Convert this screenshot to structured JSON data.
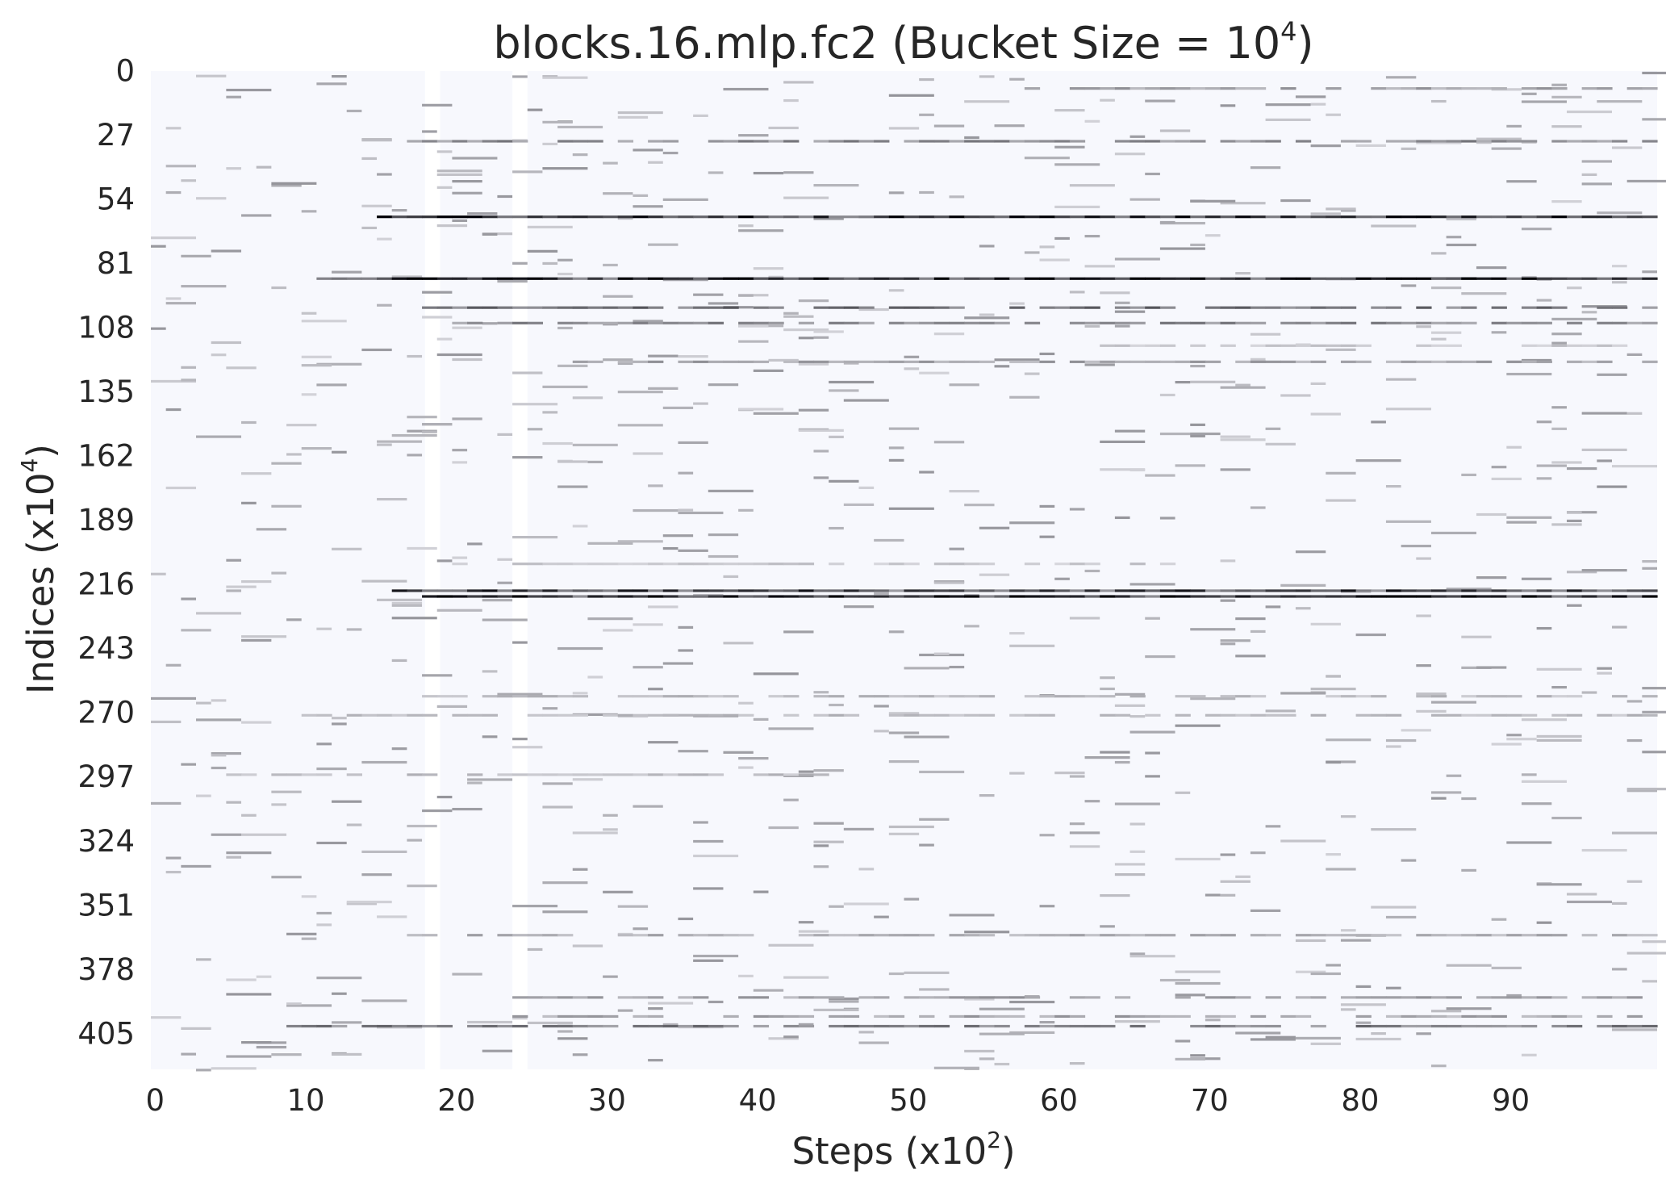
{
  "chart_data": {
    "type": "heatmap",
    "title": "blocks.16.mlp.fc2 (Bucket Size = 10",
    "title_sup": "4",
    "title_end": ")",
    "xlabel": "Steps (x10",
    "xlabel_sup": "2",
    "xlabel_end": ")",
    "ylabel": "Indices (x10",
    "ylabel_sup": "4",
    "ylabel_end": ")",
    "x_ticks": [
      0,
      10,
      20,
      30,
      40,
      50,
      60,
      70,
      80,
      90
    ],
    "y_ticks": [
      0,
      27,
      54,
      81,
      108,
      135,
      162,
      189,
      216,
      243,
      270,
      297,
      324,
      351,
      378,
      405
    ],
    "xlim": [
      0,
      100
    ],
    "ylim": [
      0,
      420
    ],
    "colormap": {
      "low": "#f7f8fd",
      "high": "#000000"
    },
    "background": "#f7f8fd",
    "streaks": [
      {
        "y": 60.8,
        "x0": 15,
        "x1": 100,
        "intensity": 0.95
      },
      {
        "y": 86.8,
        "x0": 11,
        "x1": 100,
        "intensity": 0.95
      },
      {
        "y": 218.1,
        "x0": 16,
        "x1": 100,
        "intensity": 0.8
      },
      {
        "y": 220.5,
        "x0": 18,
        "x1": 100,
        "intensity": 0.95
      },
      {
        "y": 99.0,
        "x0": 18,
        "x1": 100,
        "intensity": 0.55
      },
      {
        "y": 105.5,
        "x0": 20,
        "x1": 100,
        "intensity": 0.45
      },
      {
        "y": 29.0,
        "x0": 17,
        "x1": 100,
        "intensity": 0.45
      },
      {
        "y": 401.3,
        "x0": 9,
        "x1": 100,
        "intensity": 0.5
      },
      {
        "y": 397.2,
        "x0": 24,
        "x1": 100,
        "intensity": 0.35
      },
      {
        "y": 389.2,
        "x0": 23,
        "x1": 100,
        "intensity": 0.35
      },
      {
        "y": 363.0,
        "x0": 17,
        "x1": 100,
        "intensity": 0.3
      },
      {
        "y": 121.8,
        "x0": 28,
        "x1": 100,
        "intensity": 0.35
      },
      {
        "y": 6.8,
        "x0": 57,
        "x1": 100,
        "intensity": 0.35
      },
      {
        "y": 270.5,
        "x0": 10,
        "x1": 100,
        "intensity": 0.25
      },
      {
        "y": 262.5,
        "x0": 18,
        "x1": 100,
        "intensity": 0.25
      },
      {
        "y": 295.5,
        "x0": 5,
        "x1": 45,
        "intensity": 0.25
      },
      {
        "y": 206.8,
        "x0": 20,
        "x1": 68,
        "intensity": 0.2
      },
      {
        "y": 115.0,
        "x0": 62,
        "x1": 98,
        "intensity": 0.2
      }
    ],
    "columns": [
      {
        "x": 18.2,
        "intensity": 0.03
      },
      {
        "x": 24.0,
        "intensity": 0.03
      }
    ]
  }
}
